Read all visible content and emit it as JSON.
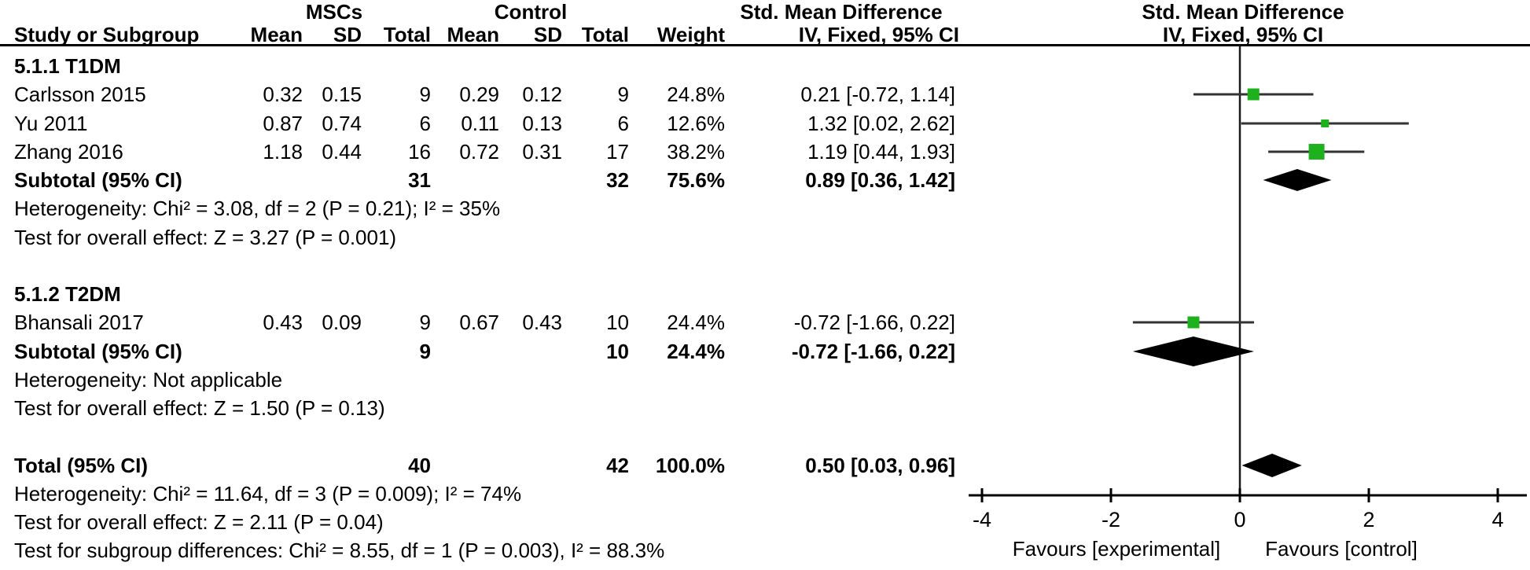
{
  "header": {
    "study_col": "Study or Subgroup",
    "group_mscs": "MSCs",
    "group_control": "Control",
    "group_smd": "Std. Mean Difference",
    "plot_title_line1": "Std. Mean Difference",
    "plot_title_line2": "IV, Fixed, 95% CI",
    "cols": [
      "Mean",
      "SD",
      "Total",
      "Mean",
      "SD",
      "Total",
      "Weight",
      "IV, Fixed, 95% CI"
    ]
  },
  "table": {
    "rows": [
      {
        "type": "section",
        "label": "5.1.1 T1DM"
      },
      {
        "type": "study",
        "label": "Carlsson 2015",
        "cells": [
          "0.32",
          "0.15",
          "9",
          "0.29",
          "0.12",
          "9",
          "24.8%",
          "0.21 [-0.72, 1.14]"
        ],
        "plot": {
          "smd": 0.21,
          "lo": -0.72,
          "hi": 1.14,
          "square": 15
        }
      },
      {
        "type": "study",
        "label": "Yu  2011",
        "cells": [
          "0.87",
          "0.74",
          "6",
          "0.11",
          "0.13",
          "6",
          "12.6%",
          "1.32 [0.02, 2.62]"
        ],
        "plot": {
          "smd": 1.32,
          "lo": 0.02,
          "hi": 2.62,
          "square": 10
        }
      },
      {
        "type": "study",
        "label": "Zhang 2016",
        "cells": [
          "1.18",
          "0.44",
          "16",
          "0.72",
          "0.31",
          "17",
          "38.2%",
          "1.19 [0.44, 1.93]"
        ],
        "plot": {
          "smd": 1.19,
          "lo": 0.44,
          "hi": 1.93,
          "square": 20
        }
      },
      {
        "type": "subtotal",
        "label": "Subtotal (95% CI)",
        "cells": [
          "",
          "",
          "31",
          "",
          "",
          "32",
          "75.6%",
          "0.89 [0.36, 1.42]"
        ],
        "plot": {
          "diamond": true,
          "center": 0.89,
          "lo": 0.36,
          "hi": 1.42,
          "hh": 14
        }
      },
      {
        "type": "stat",
        "label": "Heterogeneity: Chi² = 3.08, df = 2 (P = 0.21); I² = 35%"
      },
      {
        "type": "stat",
        "label": "Test for overall effect: Z = 3.27 (P = 0.001)"
      },
      {
        "type": "blank",
        "label": ""
      },
      {
        "type": "section",
        "label": "5.1.2 T2DM"
      },
      {
        "type": "study",
        "label": "Bhansali 2017",
        "cells": [
          "0.43",
          "0.09",
          "9",
          "0.67",
          "0.43",
          "10",
          "24.4%",
          "-0.72 [-1.66, 0.22]"
        ],
        "plot": {
          "smd": -0.72,
          "lo": -1.66,
          "hi": 0.22,
          "square": 15
        }
      },
      {
        "type": "subtotal",
        "label": "Subtotal (95% CI)",
        "cells": [
          "",
          "",
          "9",
          "",
          "",
          "10",
          "24.4%",
          "-0.72 [-1.66, 0.22]"
        ],
        "plot": {
          "diamond": true,
          "center": -0.72,
          "lo": -1.66,
          "hi": 0.22,
          "hh": 19
        }
      },
      {
        "type": "stat",
        "label": "Heterogeneity: Not applicable"
      },
      {
        "type": "stat",
        "label": "Test for overall effect: Z = 1.50 (P = 0.13)"
      },
      {
        "type": "blank",
        "label": ""
      },
      {
        "type": "total",
        "label": "Total (95% CI)",
        "cells": [
          "",
          "",
          "40",
          "",
          "",
          "42",
          "100.0%",
          "0.50 [0.03, 0.96]"
        ],
        "plot": {
          "diamond": true,
          "center": 0.5,
          "lo": 0.03,
          "hi": 0.96,
          "hh": 15
        }
      },
      {
        "type": "stat",
        "label": "Heterogeneity: Chi² = 11.64, df = 3 (P = 0.009); I² = 74%"
      },
      {
        "type": "stat",
        "label": "Test for overall effect: Z = 2.11 (P = 0.04)"
      },
      {
        "type": "stat",
        "label": "Test for subgroup differences: Chi² = 8.55, df = 1 (P = 0.003), I² = 88.3%"
      }
    ]
  },
  "axis": {
    "favours_left": "Favours [experimental]",
    "favours_right": "Favours [control]"
  },
  "colors": {
    "square_green": "#1db21d",
    "diamond_black": "#000000",
    "ci_line": "#333333",
    "axis_black": "#000000"
  },
  "chart_data": {
    "type": "forest",
    "model": "IV, Fixed, 95% CI",
    "x_axis": {
      "min": -4,
      "max": 4,
      "ticks": [
        -4,
        -2,
        0,
        2,
        4
      ]
    },
    "subgroups": [
      {
        "name": "5.1.1 T1DM",
        "studies": [
          {
            "study": "Carlsson 2015",
            "mscs": {
              "mean": 0.32,
              "sd": 0.15,
              "total": 9
            },
            "control": {
              "mean": 0.29,
              "sd": 0.12,
              "total": 9
            },
            "weight_pct": 24.8,
            "smd": 0.21,
            "ci": [
              -0.72,
              1.14
            ]
          },
          {
            "study": "Yu 2011",
            "mscs": {
              "mean": 0.87,
              "sd": 0.74,
              "total": 6
            },
            "control": {
              "mean": 0.11,
              "sd": 0.13,
              "total": 6
            },
            "weight_pct": 12.6,
            "smd": 1.32,
            "ci": [
              0.02,
              2.62
            ]
          },
          {
            "study": "Zhang 2016",
            "mscs": {
              "mean": 1.18,
              "sd": 0.44,
              "total": 16
            },
            "control": {
              "mean": 0.72,
              "sd": 0.31,
              "total": 17
            },
            "weight_pct": 38.2,
            "smd": 1.19,
            "ci": [
              0.44,
              1.93
            ]
          }
        ],
        "subtotal": {
          "mscs_total": 31,
          "control_total": 32,
          "weight_pct": 75.6,
          "smd": 0.89,
          "ci": [
            0.36,
            1.42
          ]
        },
        "heterogeneity": "Chi² = 3.08, df = 2 (P = 0.21); I² = 35%",
        "overall_effect": "Z = 3.27 (P = 0.001)"
      },
      {
        "name": "5.1.2 T2DM",
        "studies": [
          {
            "study": "Bhansali 2017",
            "mscs": {
              "mean": 0.43,
              "sd": 0.09,
              "total": 9
            },
            "control": {
              "mean": 0.67,
              "sd": 0.43,
              "total": 10
            },
            "weight_pct": 24.4,
            "smd": -0.72,
            "ci": [
              -1.66,
              0.22
            ]
          }
        ],
        "subtotal": {
          "mscs_total": 9,
          "control_total": 10,
          "weight_pct": 24.4,
          "smd": -0.72,
          "ci": [
            -1.66,
            0.22
          ]
        },
        "heterogeneity": "Not applicable",
        "overall_effect": "Z = 1.50 (P = 0.13)"
      }
    ],
    "total": {
      "mscs_total": 40,
      "control_total": 42,
      "weight_pct": 100.0,
      "smd": 0.5,
      "ci": [
        0.03,
        0.96
      ],
      "heterogeneity": "Chi² = 11.64, df = 3 (P = 0.009); I² = 74%",
      "overall_effect": "Z = 2.11 (P = 0.04)",
      "subgroup_differences": "Chi² = 8.55, df = 1 (P = 0.003), I² = 88.3%"
    }
  }
}
